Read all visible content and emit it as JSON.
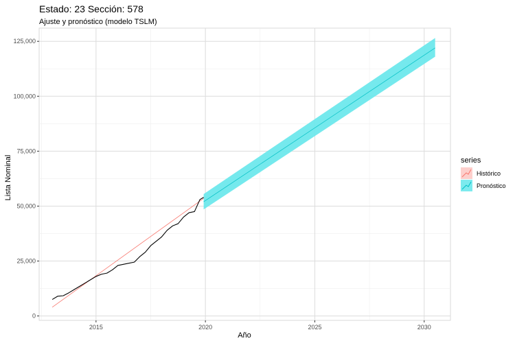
{
  "chart_data": {
    "type": "line",
    "title": "Estado: 23 Sección: 578",
    "subtitle": "Ajuste y pronóstico (modelo TSLM)",
    "xlabel": "Año",
    "ylabel": "Lista Nominal",
    "xlim": [
      2012.4,
      2031.2
    ],
    "ylim": [
      -2000,
      131000
    ],
    "x_ticks": [
      2015,
      2020,
      2025,
      2030
    ],
    "x_tick_labels": [
      "2015",
      "2020",
      "2025",
      "2030"
    ],
    "y_ticks": [
      0,
      25000,
      50000,
      75000,
      100000,
      125000
    ],
    "y_tick_labels": [
      "0",
      "25,000",
      "50,000",
      "75,000",
      "100,000",
      "125,000"
    ],
    "grid": true,
    "legend": {
      "title": "series",
      "placement": "right",
      "entries": [
        {
          "label": "Histórico",
          "color": "#F8766D"
        },
        {
          "label": "Pronóstico",
          "color": "#00BFC4"
        }
      ]
    },
    "observed": {
      "color": "#000000",
      "x": [
        2013.0,
        2013.25,
        2013.5,
        2013.75,
        2014.0,
        2014.25,
        2014.5,
        2014.75,
        2015.0,
        2015.25,
        2015.5,
        2015.75,
        2016.0,
        2016.25,
        2016.5,
        2016.75,
        2017.0,
        2017.25,
        2017.5,
        2017.75,
        2018.0,
        2018.25,
        2018.5,
        2018.75,
        2019.0,
        2019.25,
        2019.5,
        2019.75,
        2019.92
      ],
      "y": [
        7500,
        9000,
        9200,
        10500,
        12000,
        13500,
        15000,
        16500,
        18000,
        19000,
        19500,
        21000,
        23000,
        23500,
        24000,
        24500,
        27000,
        29000,
        32000,
        34000,
        36000,
        39000,
        41000,
        42000,
        45000,
        47000,
        47500,
        53000,
        54000
      ]
    },
    "fitted": {
      "color": "#F8766D",
      "x": [
        2013.0,
        2019.92
      ],
      "y": [
        4000,
        53500
      ]
    },
    "forecast": {
      "color": "#00BFC4",
      "band_color": "#6EE8EC",
      "x": [
        2019.92,
        2030.5
      ],
      "y": [
        52000,
        122000
      ],
      "lower": [
        48500,
        118000
      ],
      "upper": [
        55500,
        126500
      ]
    }
  }
}
